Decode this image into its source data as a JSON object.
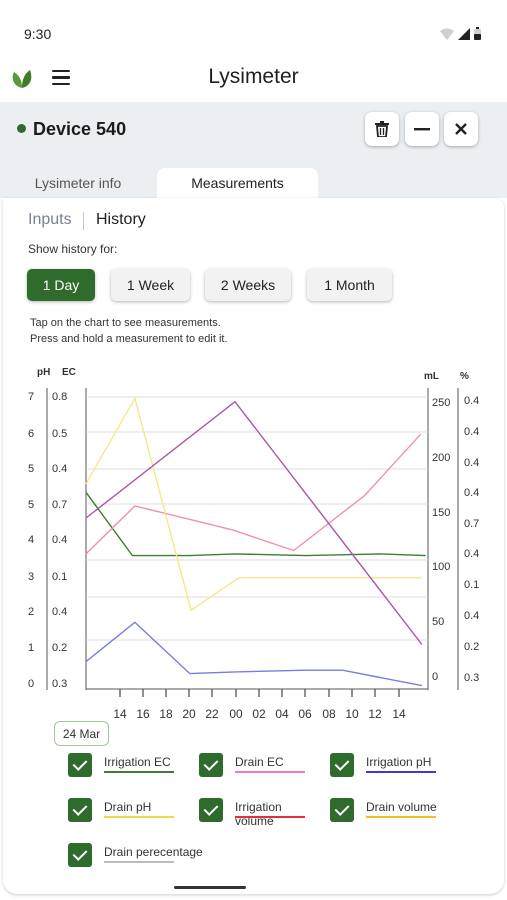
{
  "status_bar": {
    "time": "9:30"
  },
  "app_bar": {
    "title": "Lysimeter"
  },
  "device": {
    "title": "Device 540",
    "status_color": "#2e6b2d"
  },
  "tabs": [
    {
      "label": "Lysimeter info"
    },
    {
      "label": "Measurements"
    }
  ],
  "subnav": {
    "inputs": "Inputs",
    "history": "History"
  },
  "history": {
    "show_label": "Show history for:",
    "periods": [
      "1 Day",
      "1 Week",
      "2 Weeks",
      "1 Month"
    ],
    "selected": "1 Day"
  },
  "hints": [
    "Tap on the chart to see measurements.",
    "Press and hold a measurement to edit it."
  ],
  "chart_data": {
    "type": "line",
    "axis_titles": {
      "left1": "pH",
      "left2": "EC",
      "right1": "mL",
      "right2": "%"
    },
    "left1_ticks": [
      "7",
      "6",
      "5",
      "5",
      "4",
      "3",
      "2",
      "1",
      "0"
    ],
    "left2_ticks": [
      "0.8",
      "0.5",
      "0.4",
      "0.7",
      "0.4",
      "0.1",
      "0.4",
      "0.2",
      "0.3"
    ],
    "right1_ticks": [
      "250",
      "200",
      "150",
      "100",
      "50",
      "0"
    ],
    "right2_ticks": [
      "0.4",
      "0.4",
      "0.4",
      "0.4",
      "0.7",
      "0.4",
      "0.1",
      "0.4",
      "0.2",
      "0.3"
    ],
    "x_ticks": [
      "14",
      "16",
      "18",
      "20",
      "22",
      "00",
      "02",
      "04",
      "06",
      "08",
      "10",
      "12",
      "14"
    ],
    "x_start_label": "24 Mar",
    "series": [
      {
        "name": "Irrigation EC",
        "color": "#3f7d34",
        "points": [
          [
            12,
            5.55
          ],
          [
            15.8,
            3.7
          ],
          [
            20.5,
            3.7
          ],
          [
            24.2,
            3.75
          ],
          [
            30,
            3.7
          ],
          [
            36,
            3.75
          ],
          [
            39.8,
            3.7
          ]
        ]
      },
      {
        "name": "Drain EC",
        "color": "#f090b0",
        "points": [
          [
            12,
            3.75
          ],
          [
            16,
            5.15
          ],
          [
            20.6,
            4.75
          ],
          [
            24,
            4.45
          ],
          [
            29,
            3.85
          ],
          [
            34.8,
            5.45
          ],
          [
            39.4,
            7.25
          ]
        ]
      },
      {
        "name": "Irrigation pH",
        "color": "#7b7be0",
        "points": [
          [
            12,
            0.6
          ],
          [
            16,
            1.75
          ],
          [
            20.5,
            0.25
          ],
          [
            24.2,
            0.3
          ],
          [
            30,
            0.35
          ],
          [
            33,
            0.35
          ],
          [
            39.5,
            -0.1
          ]
        ]
      },
      {
        "name": "Drain pH",
        "color": "#f4e78a",
        "points": [
          [
            12,
            5.8
          ],
          [
            16,
            8.3
          ],
          [
            20.6,
            2.1
          ],
          [
            24.5,
            3.05
          ],
          [
            30,
            3.05
          ],
          [
            39.5,
            3.05
          ]
        ]
      },
      {
        "name": "Irrigation volume",
        "color": "#e0303a",
        "points": []
      },
      {
        "name": "Drain volume",
        "color": "#f0c020",
        "points": []
      },
      {
        "name": "Drain perecentage",
        "color": "#aa55aa",
        "points": [
          [
            12,
            4.8
          ],
          [
            24.2,
            8.2
          ],
          [
            39.5,
            1.1
          ]
        ]
      }
    ],
    "x_range": [
      12,
      40
    ],
    "y_range": [
      -0.2,
      8.6
    ],
    "legend": "bottom"
  },
  "legend": [
    {
      "label": "Irrigation EC",
      "color": "#3f7d34"
    },
    {
      "label": "Drain EC",
      "color": "#f178c8"
    },
    {
      "label": "Irrigation pH",
      "color": "#3a3ad8"
    },
    {
      "label": "Drain pH",
      "color": "#f0d84a"
    },
    {
      "label": "Irrigation",
      "label2": "volume",
      "color": "#e0303a"
    },
    {
      "label": "Drain volume",
      "color": "#f0c020"
    },
    {
      "label": "Drain perecentage",
      "color": "#bbbbbb"
    }
  ]
}
